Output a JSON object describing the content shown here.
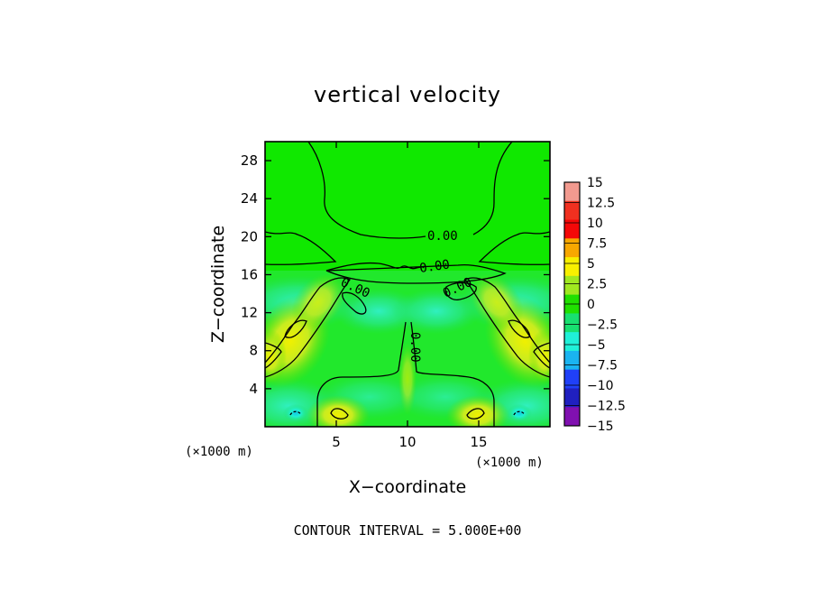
{
  "chart_data": {
    "type": "heatmap",
    "title": "vertical velocity",
    "xlabel": "X−coordinate",
    "ylabel": "Z−coordinate",
    "x_unit": "(×1000 m)",
    "y_unit": "(×1000 m)",
    "xlim": [
      0,
      20
    ],
    "ylim": [
      0,
      30
    ],
    "xticks": [
      {
        "value": 5,
        "label": "5"
      },
      {
        "value": 10,
        "label": "10"
      },
      {
        "value": 15,
        "label": "15"
      }
    ],
    "yticks": [
      {
        "value": 4,
        "label": "4"
      },
      {
        "value": 8,
        "label": "8"
      },
      {
        "value": 12,
        "label": "12"
      },
      {
        "value": 16,
        "label": "16"
      },
      {
        "value": 20,
        "label": "20"
      },
      {
        "value": 24,
        "label": "24"
      },
      {
        "value": 28,
        "label": "28"
      }
    ],
    "colorbar": {
      "levels": [
        "15",
        "12.5",
        "10",
        "7.5",
        "5",
        "2.5",
        "0",
        "−2.5",
        "−5",
        "−7.5",
        "−10",
        "−12.5",
        "−15"
      ],
      "colors": [
        "#f29a8f",
        "#f03020",
        "#f40808",
        "#f8a800",
        "#f8f000",
        "#a0e820",
        "#20e000",
        "#18e070",
        "#20f0d8",
        "#1ab4f0",
        "#2040f8",
        "#2020c0",
        "#8010b0"
      ]
    },
    "contour_labels": [
      "0.00",
      "0.00",
      "0.00",
      "0.00",
      "0.00"
    ],
    "footer": "CONTOUR INTERVAL = 5.000E+00",
    "features": {
      "background_value": 1.5,
      "updraft_lobes": [
        {
          "x": 1.5,
          "z": 9.5,
          "value": 5.5
        },
        {
          "x": 18.5,
          "z": 9.5,
          "value": 5.5
        },
        {
          "x": 5.2,
          "z": 1.0,
          "value": 5.5
        },
        {
          "x": 14.8,
          "z": 1.0,
          "value": 5.5
        }
      ],
      "downdraft_spots": [
        {
          "x": 2.2,
          "z": 1.2,
          "value": -5.5
        },
        {
          "x": 17.8,
          "z": 1.2,
          "value": -5.5
        }
      ]
    }
  }
}
